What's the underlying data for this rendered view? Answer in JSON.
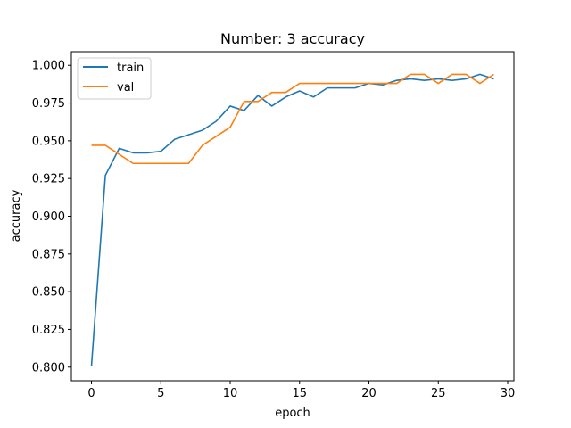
{
  "chart_data": {
    "type": "line",
    "title": "Number: 3 accuracy",
    "xlabel": "epoch",
    "ylabel": "accuracy",
    "xlim": [
      -1.45,
      30.45
    ],
    "ylim": [
      0.791,
      1.009
    ],
    "xticks": [
      0,
      5,
      10,
      15,
      20,
      25,
      30
    ],
    "xtick_labels": [
      "0",
      "5",
      "10",
      "15",
      "20",
      "25",
      "30"
    ],
    "yticks": [
      0.8,
      0.825,
      0.85,
      0.875,
      0.9,
      0.925,
      0.95,
      0.975,
      1.0
    ],
    "ytick_labels": [
      "0.800",
      "0.825",
      "0.850",
      "0.875",
      "0.900",
      "0.925",
      "0.950",
      "0.975",
      "1.000"
    ],
    "grid": false,
    "legend_position": "top-left",
    "x": [
      0,
      1,
      2,
      3,
      4,
      5,
      6,
      7,
      8,
      9,
      10,
      11,
      12,
      13,
      14,
      15,
      16,
      17,
      18,
      19,
      20,
      21,
      22,
      23,
      24,
      25,
      26,
      27,
      28,
      29
    ],
    "series": [
      {
        "name": "train",
        "color": "#1f77b4",
        "values": [
          0.801,
          0.927,
          0.945,
          0.942,
          0.942,
          0.943,
          0.951,
          0.954,
          0.957,
          0.963,
          0.973,
          0.97,
          0.98,
          0.973,
          0.979,
          0.983,
          0.979,
          0.985,
          0.985,
          0.985,
          0.988,
          0.987,
          0.99,
          0.991,
          0.99,
          0.991,
          0.99,
          0.991,
          0.994,
          0.991
        ]
      },
      {
        "name": "val",
        "color": "#ff7f0e",
        "values": [
          0.947,
          0.947,
          0.941,
          0.935,
          0.935,
          0.935,
          0.935,
          0.935,
          0.947,
          0.953,
          0.959,
          0.976,
          0.976,
          0.982,
          0.982,
          0.988,
          0.988,
          0.988,
          0.988,
          0.988,
          0.988,
          0.988,
          0.988,
          0.994,
          0.994,
          0.988,
          0.994,
          0.994,
          0.988,
          0.994
        ]
      }
    ]
  }
}
